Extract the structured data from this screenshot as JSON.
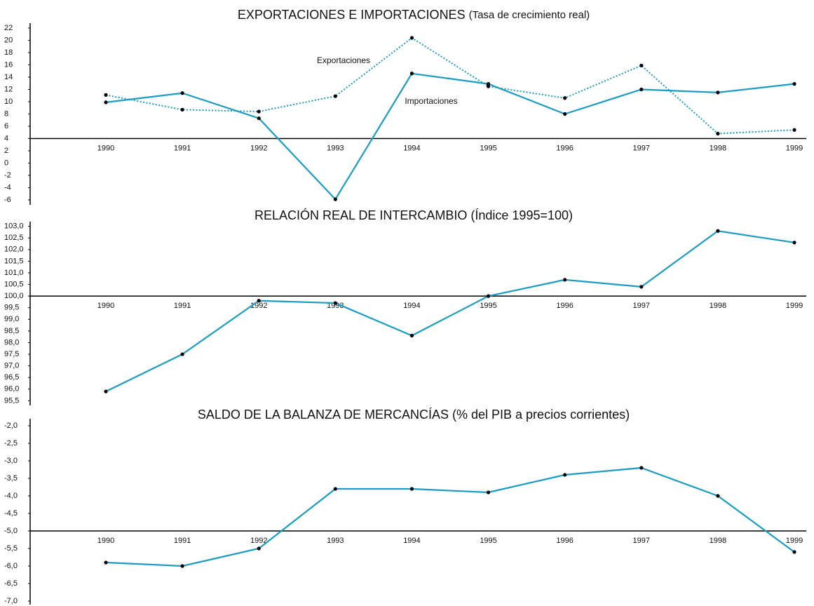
{
  "chart_data": [
    {
      "type": "line",
      "title": "EXPORTACIONES E IMPORTACIONES",
      "subtitle": "(Tasa de crecimiento real)",
      "categories": [
        "1990",
        "1991",
        "1992",
        "1993",
        "1994",
        "1995",
        "1996",
        "1997",
        "1998",
        "1999"
      ],
      "series": [
        {
          "name": "Exportaciones",
          "color": "#1a9cc4",
          "style": "dotted",
          "values": [
            11.1,
            8.7,
            8.4,
            10.9,
            20.4,
            12.5,
            10.6,
            15.9,
            4.8,
            5.4
          ]
        },
        {
          "name": "Importaciones",
          "color": "#1a9cc4",
          "style": "solid",
          "values": [
            9.9,
            11.4,
            7.3,
            -5.9,
            14.6,
            12.9,
            8.0,
            12.0,
            11.5,
            12.9
          ]
        }
      ],
      "ylim": [
        -6.8,
        22.8
      ],
      "yticks": [
        22,
        20,
        18,
        16,
        14,
        12,
        10,
        8,
        6,
        4,
        2,
        0,
        -2,
        -4,
        -6
      ],
      "xaxis_at": 4
    },
    {
      "type": "line",
      "title": "RELACIÓN REAL DE INTERCAMBIO (Índice 1995=100)",
      "categories": [
        "1990",
        "1991",
        "1992",
        "1993",
        "1994",
        "1995",
        "1996",
        "1997",
        "1998",
        "1999"
      ],
      "series": [
        {
          "color": "#1a9cc4",
          "style": "solid",
          "values": [
            95.9,
            97.5,
            99.8,
            99.7,
            98.3,
            100.0,
            100.7,
            100.4,
            102.8,
            102.3
          ]
        }
      ],
      "ylim": [
        95.3,
        103.2
      ],
      "yticks": [
        {
          "value": 103,
          "label": "103,0"
        },
        {
          "value": 102.5,
          "label": "102,5"
        },
        {
          "value": 102,
          "label": "102,0"
        },
        {
          "value": 101.5,
          "label": "101,5"
        },
        {
          "value": 101,
          "label": "101,0"
        },
        {
          "value": 100.5,
          "label": "100,5"
        },
        {
          "value": 100,
          "label": "100,0"
        },
        {
          "value": 99.5,
          "label": "99,5"
        },
        {
          "value": 99,
          "label": "99,0"
        },
        {
          "value": 98.5,
          "label": "98,5"
        },
        {
          "value": 98,
          "label": "98,0"
        },
        {
          "value": 97.5,
          "label": "97,5"
        },
        {
          "value": 97,
          "label": "97,0"
        },
        {
          "value": 96.5,
          "label": "96,5"
        },
        {
          "value": 96,
          "label": "96,0"
        },
        {
          "value": 95.5,
          "label": "95,5"
        }
      ],
      "xaxis_at": 100
    },
    {
      "type": "line",
      "title": "SALDO DE LA BALANZA DE MERCANCÍAS (% del PIB a precios corrientes)",
      "categories": [
        "1990",
        "1991",
        "1992",
        "1993",
        "1994",
        "1995",
        "1996",
        "1997",
        "1998",
        "1999"
      ],
      "series": [
        {
          "color": "#1a9cc4",
          "style": "solid",
          "values": [
            -5.9,
            -6.0,
            -5.5,
            -3.8,
            -3.8,
            -3.9,
            -3.4,
            -3.2,
            -4.0,
            -5.6
          ]
        }
      ],
      "ylim": [
        -7.1,
        -1.8
      ],
      "yticks": [
        {
          "value": -2,
          "label": "-2,0"
        },
        {
          "value": -2.5,
          "label": "-2,5"
        },
        {
          "value": -3,
          "label": "-3,0"
        },
        {
          "value": -3.5,
          "label": "-3,5"
        },
        {
          "value": -4,
          "label": "-4,0"
        },
        {
          "value": -4.5,
          "label": "-4,5"
        },
        {
          "value": -5,
          "label": "-5,0"
        },
        {
          "value": -5.5,
          "label": "-5,5"
        },
        {
          "value": -6,
          "label": "-6,0"
        },
        {
          "value": -6.5,
          "label": "-6,5"
        },
        {
          "value": -7,
          "label": "-7,0"
        }
      ],
      "xaxis_at": -5
    }
  ]
}
